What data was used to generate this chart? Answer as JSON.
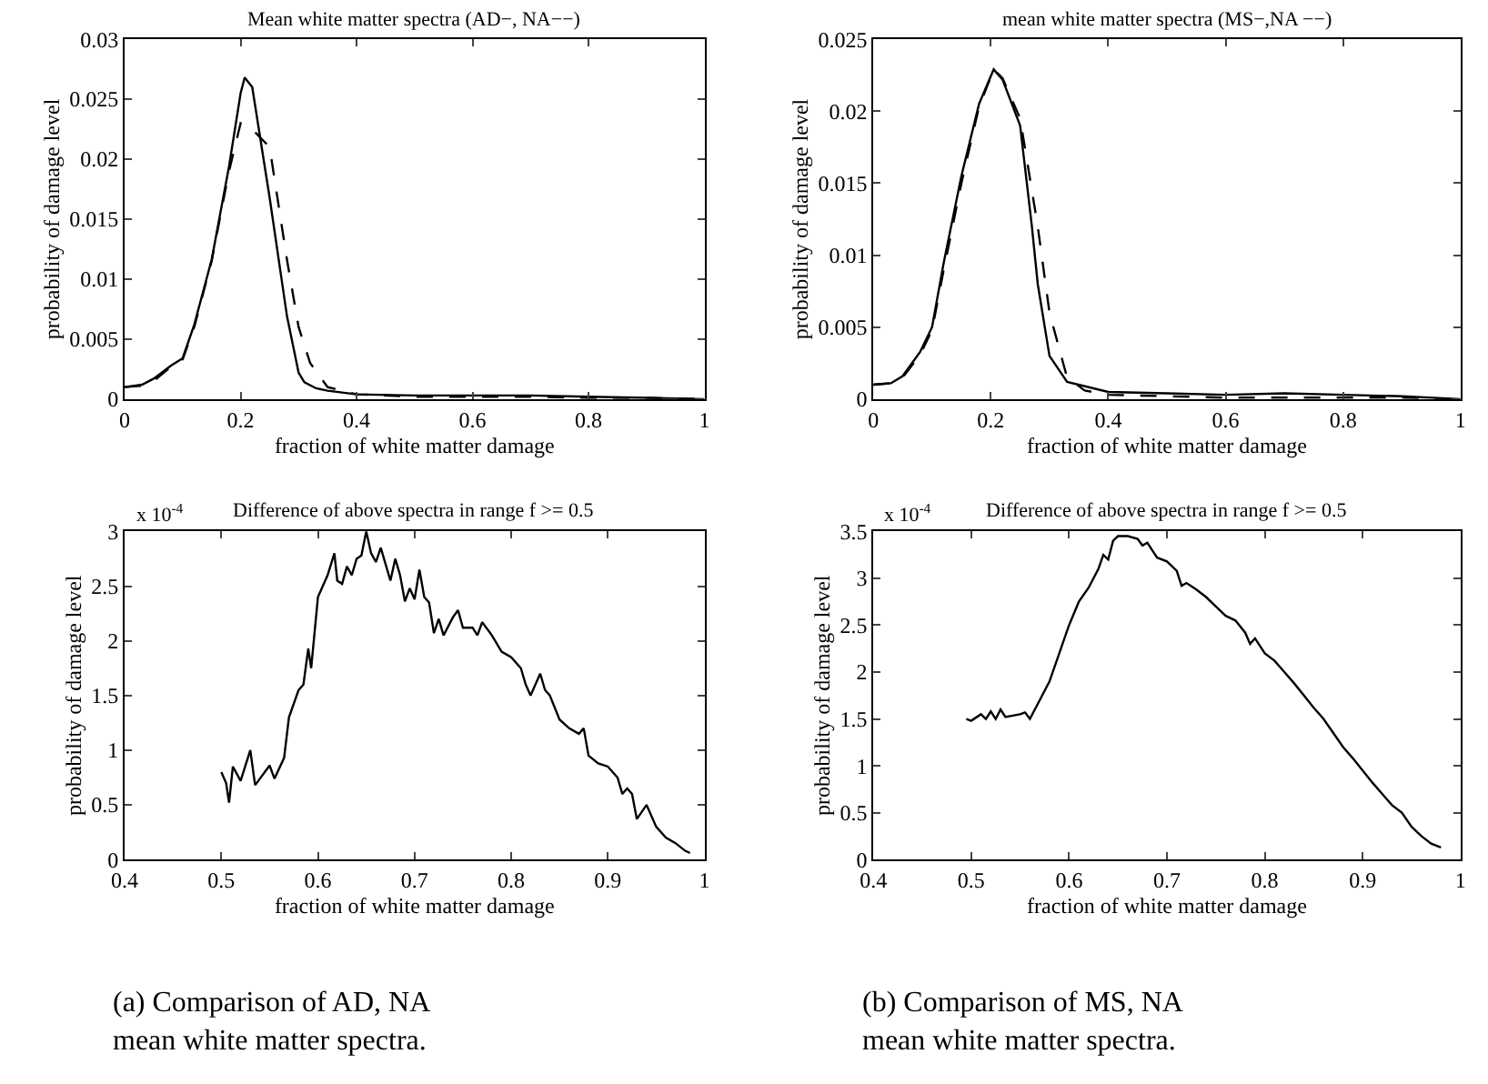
{
  "chart_data": [
    {
      "type": "line",
      "title": "Mean white matter spectra (AD−, NA−−)",
      "xlabel": "fraction of white matter damage",
      "ylabel": "probability of damage level",
      "xlim": [
        0,
        1
      ],
      "xticks": [
        0,
        0.2,
        0.4,
        0.6,
        0.8,
        1
      ],
      "ylim": [
        0,
        0.03
      ],
      "yticks": [
        0,
        0.005,
        0.01,
        0.015,
        0.02,
        0.025,
        0.03
      ],
      "series": [
        {
          "color": "#000000",
          "line_style": "solid",
          "x": [
            0,
            0.03,
            0.05,
            0.08,
            0.1,
            0.12,
            0.15,
            0.18,
            0.2,
            0.207,
            0.22,
            0.25,
            0.28,
            0.3,
            0.31,
            0.33,
            0.35,
            0.4,
            0.5,
            0.6,
            0.7,
            0.8,
            0.9,
            1.0
          ],
          "values": [
            0.001,
            0.0012,
            0.0017,
            0.0028,
            0.0034,
            0.0062,
            0.0116,
            0.0194,
            0.0255,
            0.0268,
            0.026,
            0.0168,
            0.0069,
            0.0022,
            0.0014,
            0.0009,
            0.0007,
            0.0004,
            0.0003,
            0.0003,
            0.0003,
            0.0002,
            0.0001,
            0
          ]
        },
        {
          "color": "#000000",
          "line_style": "dashed",
          "x": [
            0,
            0.03,
            0.05,
            0.08,
            0.1,
            0.12,
            0.15,
            0.18,
            0.2,
            0.22,
            0.25,
            0.28,
            0.3,
            0.32,
            0.35,
            0.4,
            0.5,
            0.6,
            0.7,
            0.8,
            0.9,
            1.0
          ],
          "values": [
            0.001,
            0.0011,
            0.0015,
            0.0027,
            0.0033,
            0.006,
            0.0115,
            0.019,
            0.023,
            0.0225,
            0.021,
            0.0116,
            0.006,
            0.003,
            0.001,
            0.0004,
            0.0002,
            0.0002,
            0.0002,
            0.0001,
            0.0001,
            0
          ]
        }
      ]
    },
    {
      "type": "line",
      "title": "mean white matter spectra (MS−,NA −−)",
      "xlabel": "fraction of white matter damage",
      "ylabel": "probability of damage level",
      "xlim": [
        0,
        1
      ],
      "xticks": [
        0,
        0.2,
        0.4,
        0.6,
        0.8,
        1
      ],
      "ylim": [
        0,
        0.025
      ],
      "yticks": [
        0,
        0.005,
        0.01,
        0.015,
        0.02,
        0.025
      ],
      "series": [
        {
          "color": "#000000",
          "line_style": "solid",
          "x": [
            0,
            0.03,
            0.05,
            0.08,
            0.1,
            0.12,
            0.15,
            0.18,
            0.205,
            0.22,
            0.25,
            0.27,
            0.28,
            0.3,
            0.33,
            0.4,
            0.5,
            0.6,
            0.7,
            0.8,
            0.9,
            1.0
          ],
          "values": [
            0.001,
            0.0011,
            0.0016,
            0.0033,
            0.005,
            0.0095,
            0.0155,
            0.0205,
            0.0229,
            0.0222,
            0.019,
            0.012,
            0.008,
            0.003,
            0.0012,
            0.0005,
            0.0004,
            0.0003,
            0.0004,
            0.0003,
            0.0002,
            0
          ]
        },
        {
          "color": "#000000",
          "line_style": "dashed",
          "x": [
            0,
            0.03,
            0.05,
            0.08,
            0.1,
            0.12,
            0.15,
            0.18,
            0.205,
            0.22,
            0.25,
            0.28,
            0.3,
            0.33,
            0.36,
            0.4,
            0.5,
            0.6,
            0.7,
            0.8,
            0.9,
            1.0
          ],
          "values": [
            0.001,
            0.0011,
            0.0015,
            0.0031,
            0.0048,
            0.009,
            0.015,
            0.0203,
            0.0229,
            0.0223,
            0.0195,
            0.012,
            0.006,
            0.0015,
            0.0006,
            0.0003,
            0.0002,
            0.0001,
            0.0001,
            0.0001,
            0.0001,
            0
          ]
        }
      ]
    },
    {
      "type": "line",
      "title": "Difference of above spectra in range f >= 0.5",
      "xlabel": "fraction of white matter damage",
      "ylabel": "probability of damage level",
      "xlim": [
        0.4,
        1
      ],
      "xticks": [
        0.4,
        0.5,
        0.6,
        0.7,
        0.8,
        0.9,
        1
      ],
      "ylim": [
        0,
        3
      ],
      "yticks": [
        0,
        0.5,
        1,
        1.5,
        2,
        2.5,
        3
      ],
      "annotations": [
        "x 10$^{-4}$",
        "(a) Comparison of AD, NA mean white matter spectra."
      ],
      "series": [
        {
          "color": "#000000",
          "line_style": "solid",
          "x": [
            0.5,
            0.505,
            0.508,
            0.512,
            0.52,
            0.53,
            0.535,
            0.55,
            0.555,
            0.565,
            0.57,
            0.58,
            0.585,
            0.59,
            0.593,
            0.6,
            0.605,
            0.61,
            0.617,
            0.62,
            0.625,
            0.63,
            0.635,
            0.64,
            0.645,
            0.65,
            0.655,
            0.66,
            0.665,
            0.67,
            0.675,
            0.68,
            0.685,
            0.69,
            0.695,
            0.7,
            0.705,
            0.71,
            0.715,
            0.72,
            0.725,
            0.73,
            0.74,
            0.745,
            0.75,
            0.76,
            0.765,
            0.77,
            0.78,
            0.79,
            0.8,
            0.81,
            0.815,
            0.82,
            0.83,
            0.835,
            0.84,
            0.85,
            0.86,
            0.87,
            0.875,
            0.88,
            0.89,
            0.9,
            0.91,
            0.915,
            0.92,
            0.925,
            0.93,
            0.94,
            0.95,
            0.96,
            0.97,
            0.98,
            0.985
          ],
          "values": [
            0.8,
            0.7,
            0.52,
            0.85,
            0.72,
            1.0,
            0.68,
            0.86,
            0.74,
            0.93,
            1.3,
            1.55,
            1.6,
            1.93,
            1.75,
            2.4,
            2.5,
            2.6,
            2.8,
            2.55,
            2.52,
            2.68,
            2.6,
            2.75,
            2.78,
            3.0,
            2.8,
            2.72,
            2.85,
            2.7,
            2.55,
            2.75,
            2.6,
            2.36,
            2.48,
            2.38,
            2.65,
            2.4,
            2.35,
            2.07,
            2.2,
            2.05,
            2.22,
            2.28,
            2.12,
            2.12,
            2.05,
            2.17,
            2.05,
            1.9,
            1.85,
            1.75,
            1.6,
            1.5,
            1.7,
            1.55,
            1.5,
            1.28,
            1.2,
            1.15,
            1.2,
            0.95,
            0.88,
            0.85,
            0.75,
            0.6,
            0.65,
            0.6,
            0.37,
            0.5,
            0.3,
            0.2,
            0.15,
            0.08,
            0.06
          ]
        }
      ]
    },
    {
      "type": "line",
      "title": "Difference of above spectra in range f >= 0.5",
      "xlabel": "fraction of white matter damage",
      "ylabel": "probability of damage level",
      "xlim": [
        0.4,
        1
      ],
      "xticks": [
        0.4,
        0.5,
        0.6,
        0.7,
        0.8,
        0.9,
        1
      ],
      "ylim": [
        0,
        3.5
      ],
      "yticks": [
        0,
        0.5,
        1,
        1.5,
        2,
        2.5,
        3,
        3.5
      ],
      "annotations": [
        "x 10$^{-4}$",
        "(b) Comparison of MS, NA mean white matter spectra."
      ],
      "series": [
        {
          "color": "#000000",
          "line_style": "solid",
          "x": [
            0.495,
            0.5,
            0.51,
            0.515,
            0.52,
            0.525,
            0.53,
            0.535,
            0.55,
            0.555,
            0.56,
            0.57,
            0.58,
            0.59,
            0.6,
            0.61,
            0.62,
            0.63,
            0.635,
            0.64,
            0.645,
            0.65,
            0.66,
            0.67,
            0.675,
            0.68,
            0.69,
            0.7,
            0.71,
            0.715,
            0.72,
            0.73,
            0.74,
            0.75,
            0.76,
            0.77,
            0.78,
            0.785,
            0.79,
            0.8,
            0.81,
            0.82,
            0.83,
            0.84,
            0.85,
            0.86,
            0.87,
            0.88,
            0.89,
            0.9,
            0.91,
            0.92,
            0.93,
            0.94,
            0.95,
            0.96,
            0.97,
            0.98
          ],
          "values": [
            1.5,
            1.48,
            1.55,
            1.5,
            1.58,
            1.5,
            1.6,
            1.52,
            1.55,
            1.57,
            1.5,
            1.7,
            1.9,
            2.2,
            2.5,
            2.75,
            2.9,
            3.1,
            3.25,
            3.2,
            3.4,
            3.45,
            3.45,
            3.42,
            3.35,
            3.38,
            3.22,
            3.18,
            3.08,
            2.92,
            2.95,
            2.88,
            2.8,
            2.7,
            2.6,
            2.55,
            2.42,
            2.3,
            2.36,
            2.2,
            2.12,
            2.0,
            1.88,
            1.75,
            1.62,
            1.5,
            1.35,
            1.2,
            1.08,
            0.95,
            0.82,
            0.7,
            0.58,
            0.5,
            0.35,
            0.25,
            0.17,
            0.13
          ]
        }
      ]
    }
  ]
}
